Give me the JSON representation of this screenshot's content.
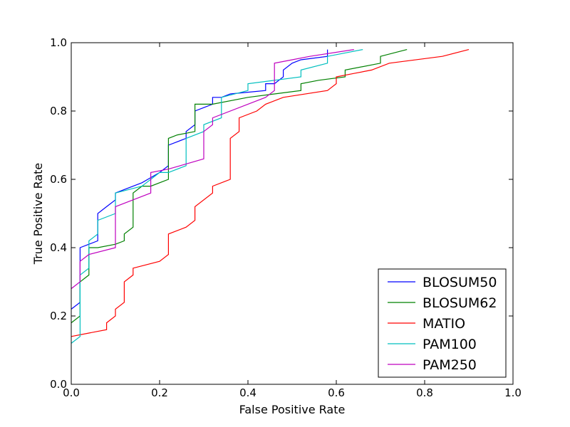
{
  "chart_data": {
    "type": "line",
    "title": "",
    "xlabel": "False Positive Rate",
    "ylabel": "True Positive Rate",
    "xlim": [
      0.0,
      1.0
    ],
    "ylim": [
      0.0,
      1.0
    ],
    "xticks": [
      "0.0",
      "0.2",
      "0.4",
      "0.6",
      "0.8",
      "1.0"
    ],
    "yticks": [
      "0.0",
      "0.2",
      "0.4",
      "0.6",
      "0.8",
      "1.0"
    ],
    "grid": false,
    "legend_position": "lower-right",
    "series": [
      {
        "name": "BLOSUM50",
        "color": "#0000ff",
        "points": [
          [
            0,
            0.22
          ],
          [
            0.02,
            0.24
          ],
          [
            0.02,
            0.4
          ],
          [
            0.04,
            0.41
          ],
          [
            0.06,
            0.42
          ],
          [
            0.06,
            0.5
          ],
          [
            0.08,
            0.52
          ],
          [
            0.1,
            0.54
          ],
          [
            0.1,
            0.56
          ],
          [
            0.14,
            0.58
          ],
          [
            0.16,
            0.59
          ],
          [
            0.2,
            0.62
          ],
          [
            0.22,
            0.64
          ],
          [
            0.22,
            0.7
          ],
          [
            0.26,
            0.72
          ],
          [
            0.26,
            0.74
          ],
          [
            0.28,
            0.76
          ],
          [
            0.28,
            0.8
          ],
          [
            0.3,
            0.81
          ],
          [
            0.32,
            0.82
          ],
          [
            0.32,
            0.84
          ],
          [
            0.34,
            0.84
          ],
          [
            0.36,
            0.85
          ],
          [
            0.44,
            0.86
          ],
          [
            0.44,
            0.88
          ],
          [
            0.46,
            0.88
          ],
          [
            0.48,
            0.9
          ],
          [
            0.48,
            0.92
          ],
          [
            0.5,
            0.94
          ],
          [
            0.52,
            0.95
          ],
          [
            0.58,
            0.96
          ],
          [
            0.58,
            0.98
          ]
        ]
      },
      {
        "name": "BLOSUM62",
        "color": "#008000",
        "points": [
          [
            0,
            0.18
          ],
          [
            0.02,
            0.2
          ],
          [
            0.02,
            0.3
          ],
          [
            0.04,
            0.32
          ],
          [
            0.04,
            0.4
          ],
          [
            0.06,
            0.4
          ],
          [
            0.1,
            0.41
          ],
          [
            0.12,
            0.42
          ],
          [
            0.12,
            0.44
          ],
          [
            0.14,
            0.46
          ],
          [
            0.14,
            0.56
          ],
          [
            0.16,
            0.58
          ],
          [
            0.18,
            0.58
          ],
          [
            0.22,
            0.6
          ],
          [
            0.22,
            0.72
          ],
          [
            0.24,
            0.73
          ],
          [
            0.28,
            0.74
          ],
          [
            0.28,
            0.82
          ],
          [
            0.32,
            0.82
          ],
          [
            0.4,
            0.84
          ],
          [
            0.46,
            0.85
          ],
          [
            0.52,
            0.86
          ],
          [
            0.52,
            0.88
          ],
          [
            0.56,
            0.89
          ],
          [
            0.62,
            0.9
          ],
          [
            0.62,
            0.92
          ],
          [
            0.7,
            0.94
          ],
          [
            0.7,
            0.96
          ],
          [
            0.76,
            0.98
          ]
        ]
      },
      {
        "name": "MATIO",
        "color": "#ff0000",
        "points": [
          [
            0,
            0.14
          ],
          [
            0.04,
            0.15
          ],
          [
            0.08,
            0.16
          ],
          [
            0.08,
            0.18
          ],
          [
            0.1,
            0.2
          ],
          [
            0.1,
            0.22
          ],
          [
            0.12,
            0.24
          ],
          [
            0.12,
            0.3
          ],
          [
            0.14,
            0.32
          ],
          [
            0.14,
            0.34
          ],
          [
            0.2,
            0.36
          ],
          [
            0.22,
            0.38
          ],
          [
            0.22,
            0.44
          ],
          [
            0.26,
            0.46
          ],
          [
            0.28,
            0.48
          ],
          [
            0.28,
            0.52
          ],
          [
            0.32,
            0.56
          ],
          [
            0.32,
            0.58
          ],
          [
            0.36,
            0.6
          ],
          [
            0.36,
            0.72
          ],
          [
            0.38,
            0.74
          ],
          [
            0.38,
            0.78
          ],
          [
            0.42,
            0.8
          ],
          [
            0.44,
            0.82
          ],
          [
            0.48,
            0.84
          ],
          [
            0.58,
            0.86
          ],
          [
            0.6,
            0.88
          ],
          [
            0.6,
            0.9
          ],
          [
            0.64,
            0.91
          ],
          [
            0.68,
            0.92
          ],
          [
            0.72,
            0.94
          ],
          [
            0.84,
            0.96
          ],
          [
            0.9,
            0.98
          ]
        ]
      },
      {
        "name": "PAM100",
        "color": "#00bfbf",
        "points": [
          [
            0,
            0.12
          ],
          [
            0.02,
            0.14
          ],
          [
            0.02,
            0.32
          ],
          [
            0.04,
            0.34
          ],
          [
            0.04,
            0.42
          ],
          [
            0.06,
            0.44
          ],
          [
            0.06,
            0.48
          ],
          [
            0.1,
            0.5
          ],
          [
            0.1,
            0.56
          ],
          [
            0.16,
            0.58
          ],
          [
            0.18,
            0.6
          ],
          [
            0.2,
            0.62
          ],
          [
            0.22,
            0.62
          ],
          [
            0.26,
            0.64
          ],
          [
            0.26,
            0.72
          ],
          [
            0.3,
            0.74
          ],
          [
            0.3,
            0.76
          ],
          [
            0.34,
            0.78
          ],
          [
            0.34,
            0.84
          ],
          [
            0.4,
            0.86
          ],
          [
            0.4,
            0.88
          ],
          [
            0.46,
            0.89
          ],
          [
            0.52,
            0.9
          ],
          [
            0.52,
            0.92
          ],
          [
            0.58,
            0.94
          ],
          [
            0.58,
            0.96
          ],
          [
            0.66,
            0.98
          ]
        ]
      },
      {
        "name": "PAM250",
        "color": "#bf00bf",
        "points": [
          [
            0,
            0.28
          ],
          [
            0.02,
            0.3
          ],
          [
            0.02,
            0.36
          ],
          [
            0.04,
            0.38
          ],
          [
            0.1,
            0.4
          ],
          [
            0.1,
            0.52
          ],
          [
            0.14,
            0.54
          ],
          [
            0.18,
            0.56
          ],
          [
            0.18,
            0.62
          ],
          [
            0.22,
            0.63
          ],
          [
            0.3,
            0.66
          ],
          [
            0.3,
            0.74
          ],
          [
            0.32,
            0.76
          ],
          [
            0.32,
            0.78
          ],
          [
            0.44,
            0.84
          ],
          [
            0.46,
            0.86
          ],
          [
            0.46,
            0.94
          ],
          [
            0.5,
            0.95
          ],
          [
            0.54,
            0.96
          ],
          [
            0.64,
            0.98
          ]
        ]
      }
    ]
  }
}
